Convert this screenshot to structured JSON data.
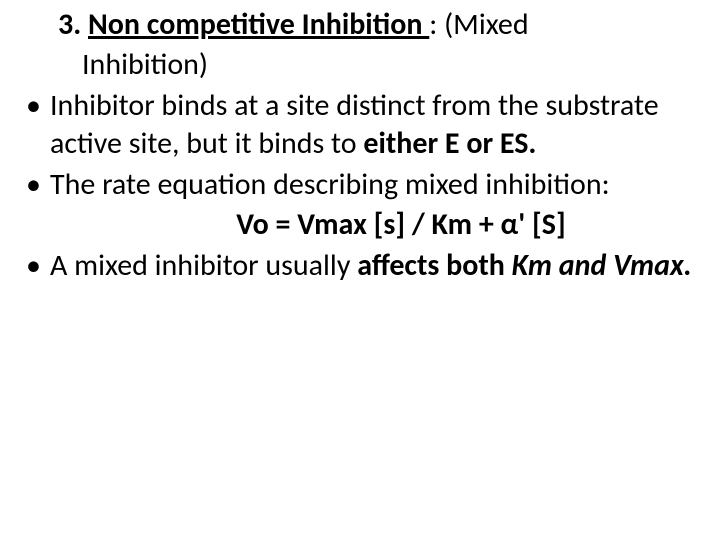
{
  "slide": {
    "background_color": "#ffffff",
    "text_color": "#000000",
    "font_family": "Calibri",
    "base_fontsize_pt": 30,
    "heading": {
      "number": "3.",
      "title_underlined": "Non competitive  Inhibition ",
      "after_title": ":  (Mixed",
      "continuation": "Inhibition)"
    },
    "bullets": [
      {
        "runs": [
          {
            "text": "Inhibitor binds at a site distinct from the substrate active site, but it binds to ",
            "bold": false
          },
          {
            "text": "either E or ES.",
            "bold": true
          }
        ]
      },
      {
        "runs": [
          {
            "text": "The rate equation describing mixed inhibition:",
            "bold": false
          }
        ],
        "equation": "Vo =  Vmax [s] / Km + α' [S]"
      },
      {
        "runs": [
          {
            "text": "A mixed inhibitor usually ",
            "bold": false
          },
          {
            "text": "affects both ",
            "bold": true
          },
          {
            "text": "Km and Vmax.",
            "bold": true,
            "italic": true
          }
        ]
      }
    ]
  }
}
